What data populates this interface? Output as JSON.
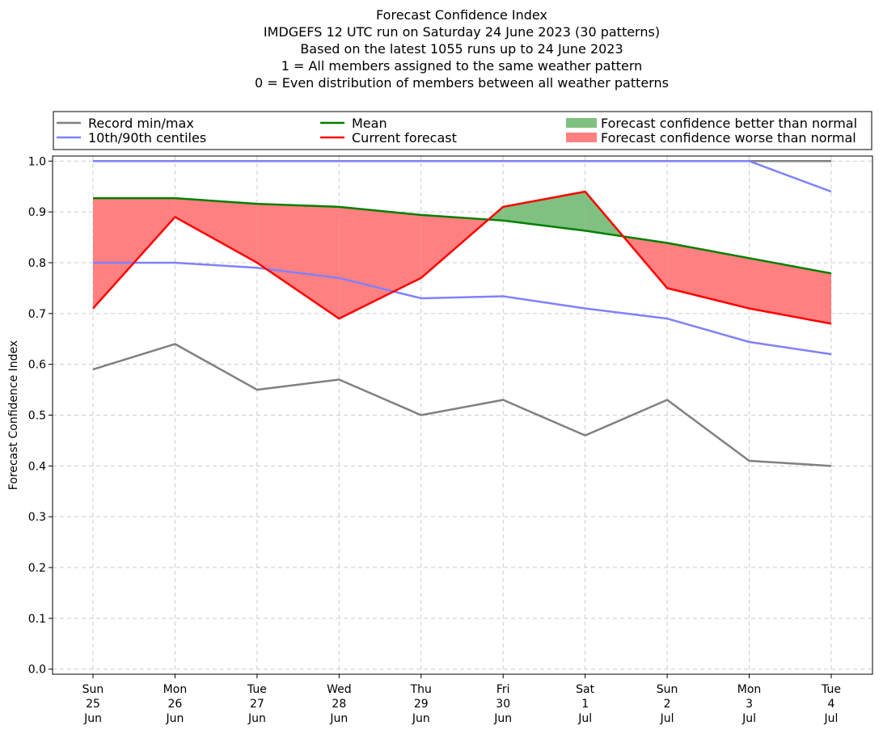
{
  "chart_data": {
    "type": "line",
    "title": [
      "Forecast Confidence Index",
      "IMDGEFS 12 UTC run on Saturday 24 June 2023 (30 patterns)",
      "Based on the latest 1055 runs up to 24 June 2023",
      "1 = All members assigned to the same weather pattern",
      "0 = Even distribution of members between all weather patterns"
    ],
    "ylabel": "Forecast Confidence Index",
    "xlabel": "",
    "ylim": [
      -0.01,
      1.01
    ],
    "yticks": [
      "0.0",
      "0.1",
      "0.2",
      "0.3",
      "0.4",
      "0.5",
      "0.6",
      "0.7",
      "0.8",
      "0.9",
      "1.0"
    ],
    "ytick_values": [
      0,
      0.1,
      0.2,
      0.3,
      0.4,
      0.5,
      0.6,
      0.7,
      0.8,
      0.9,
      1.0
    ],
    "categories": [
      [
        "Sun",
        "25",
        "Jun"
      ],
      [
        "Mon",
        "26",
        "Jun"
      ],
      [
        "Tue",
        "27",
        "Jun"
      ],
      [
        "Wed",
        "28",
        "Jun"
      ],
      [
        "Thu",
        "29",
        "Jun"
      ],
      [
        "Fri",
        "30",
        "Jun"
      ],
      [
        "Sat",
        "1",
        "Jul"
      ],
      [
        "Sun",
        "2",
        "Jul"
      ],
      [
        "Mon",
        "3",
        "Jul"
      ],
      [
        "Tue",
        "4",
        "Jul"
      ]
    ],
    "grid": true,
    "legend_position": "top",
    "series": [
      {
        "name": "Record min/max",
        "color": "#808080",
        "role": "record_min",
        "values": [
          0.59,
          0.64,
          0.55,
          0.57,
          0.5,
          0.53,
          0.46,
          0.53,
          0.41,
          0.4
        ]
      },
      {
        "name": "Record min/max",
        "color": "#808080",
        "role": "record_max",
        "values": [
          1.0,
          1.0,
          1.0,
          1.0,
          1.0,
          1.0,
          1.0,
          1.0,
          1.0,
          1.0
        ]
      },
      {
        "name": "10th/90th centiles",
        "color": "#8080ff",
        "role": "p10",
        "values": [
          0.8,
          0.8,
          0.79,
          0.77,
          0.73,
          0.734,
          0.71,
          0.69,
          0.644,
          0.62
        ]
      },
      {
        "name": "10th/90th centiles",
        "color": "#8080ff",
        "role": "p90",
        "values": [
          1.0,
          1.0,
          1.0,
          1.0,
          1.0,
          1.0,
          1.0,
          1.0,
          1.0,
          0.94
        ]
      },
      {
        "name": "Mean",
        "color": "#008000",
        "role": "mean",
        "values": [
          0.927,
          0.927,
          0.916,
          0.91,
          0.894,
          0.883,
          0.863,
          0.839,
          0.809,
          0.779
        ]
      },
      {
        "name": "Current forecast",
        "color": "#ff0000",
        "role": "current",
        "values": [
          0.71,
          0.89,
          0.8,
          0.69,
          0.77,
          0.91,
          0.94,
          0.75,
          0.71,
          0.68
        ]
      }
    ],
    "fills": {
      "better": {
        "label": "Forecast confidence better than normal",
        "color": "#80c080"
      },
      "worse": {
        "label": "Forecast confidence worse than normal",
        "color": "#ff8080"
      }
    },
    "legend": {
      "items": [
        {
          "label": "Record min/max",
          "kind": "line",
          "color": "#808080"
        },
        {
          "label": "10th/90th centiles",
          "kind": "line",
          "color": "#8080ff"
        },
        {
          "label": "Mean",
          "kind": "line",
          "color": "#008000"
        },
        {
          "label": "Current forecast",
          "kind": "line",
          "color": "#ff0000"
        },
        {
          "label": "Forecast confidence better than normal",
          "kind": "patch",
          "color": "#80c080"
        },
        {
          "label": "Forecast confidence worse than normal",
          "kind": "patch",
          "color": "#ff8080"
        }
      ]
    }
  }
}
